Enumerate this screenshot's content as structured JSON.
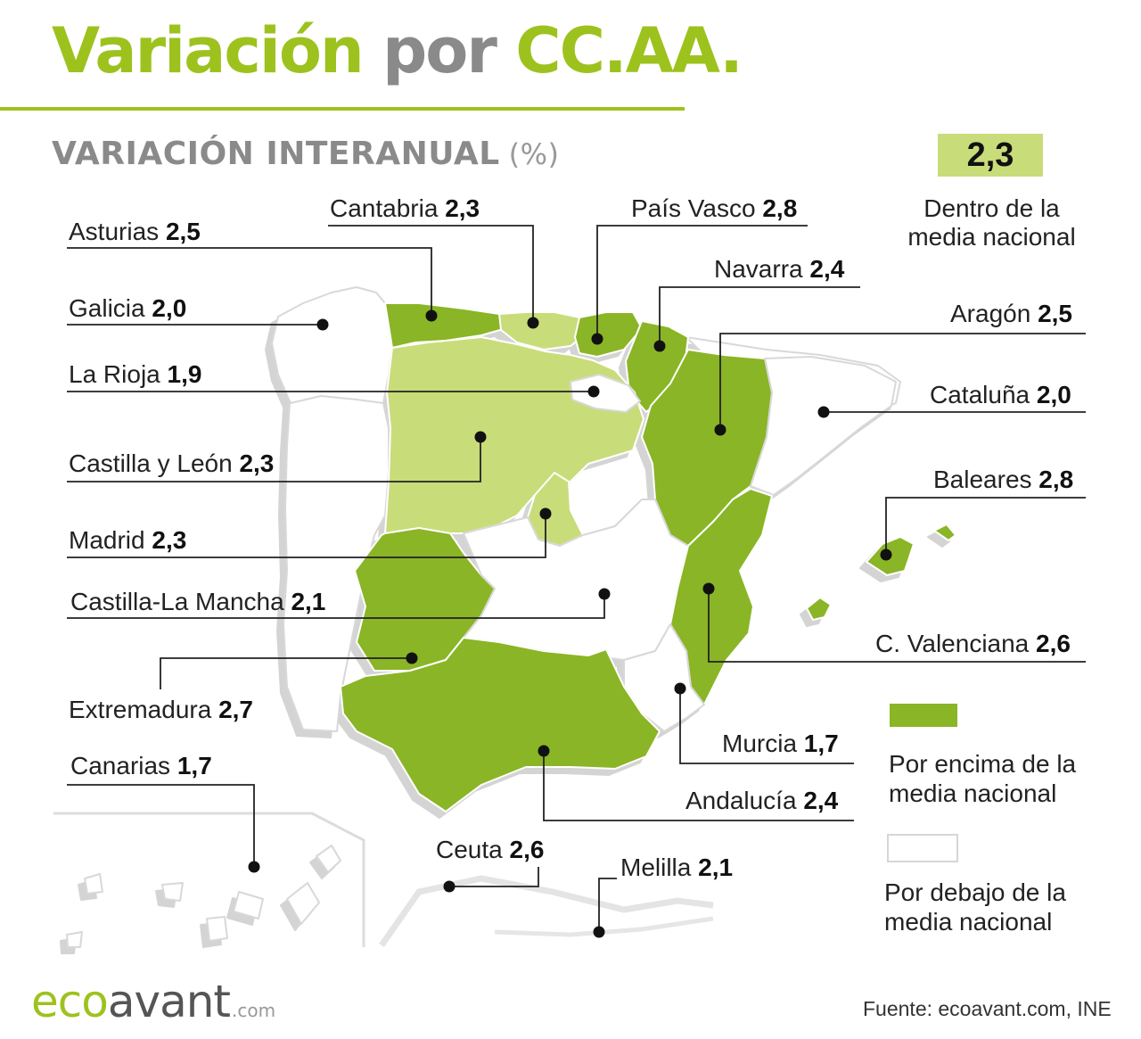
{
  "title": {
    "part1": "Variación",
    "part2": "por",
    "part3": "CC.AA."
  },
  "subtitle": {
    "main": "VARIACIÓN INTERANUAL",
    "unit": "(%)"
  },
  "national_average": {
    "value": "2,3",
    "label": "Dentro de la media nacional"
  },
  "legend": {
    "above": "Por encima de la media nacional",
    "below": "Por debajo de la media nacional"
  },
  "colors": {
    "above": "#8ab526",
    "within": "#c9dc7a",
    "below": "#ffffff",
    "accent": "#9dc21e"
  },
  "regions": [
    {
      "id": "asturias",
      "name": "Asturias",
      "value": "2,5",
      "category": "above"
    },
    {
      "id": "cantabria",
      "name": "Cantabria",
      "value": "2,3",
      "category": "within"
    },
    {
      "id": "pais-vasco",
      "name": "País Vasco",
      "value": "2,8",
      "category": "above"
    },
    {
      "id": "navarra",
      "name": "Navarra",
      "value": "2,4",
      "category": "above"
    },
    {
      "id": "galicia",
      "name": "Galicia",
      "value": "2,0",
      "category": "below"
    },
    {
      "id": "aragon",
      "name": "Aragón",
      "value": "2,5",
      "category": "above"
    },
    {
      "id": "la-rioja",
      "name": "La Rioja",
      "value": "1,9",
      "category": "below"
    },
    {
      "id": "cataluna",
      "name": "Cataluña",
      "value": "2,0",
      "category": "below"
    },
    {
      "id": "castilla-leon",
      "name": "Castilla y León",
      "value": "2,3",
      "category": "within"
    },
    {
      "id": "baleares",
      "name": "Baleares",
      "value": "2,8",
      "category": "above"
    },
    {
      "id": "madrid",
      "name": "Madrid",
      "value": "2,3",
      "category": "within"
    },
    {
      "id": "castilla-la-mancha",
      "name": "Castilla-La Mancha",
      "value": "2,1",
      "category": "below"
    },
    {
      "id": "c-valenciana",
      "name": "C. Valenciana",
      "value": "2,6",
      "category": "above"
    },
    {
      "id": "extremadura",
      "name": "Extremadura",
      "value": "2,7",
      "category": "above"
    },
    {
      "id": "murcia",
      "name": "Murcia",
      "value": "1,7",
      "category": "below"
    },
    {
      "id": "canarias",
      "name": "Canarias",
      "value": "1,7",
      "category": "below"
    },
    {
      "id": "andalucia",
      "name": "Andalucía",
      "value": "2,4",
      "category": "above"
    },
    {
      "id": "ceuta",
      "name": "Ceuta",
      "value": "2,6",
      "category": "above"
    },
    {
      "id": "melilla",
      "name": "Melilla",
      "value": "2,1",
      "category": "below"
    }
  ],
  "logo": {
    "eco": "eco",
    "avant": "avant",
    "com": ".com"
  },
  "source": "Fuente: ecoavant.com, INE"
}
